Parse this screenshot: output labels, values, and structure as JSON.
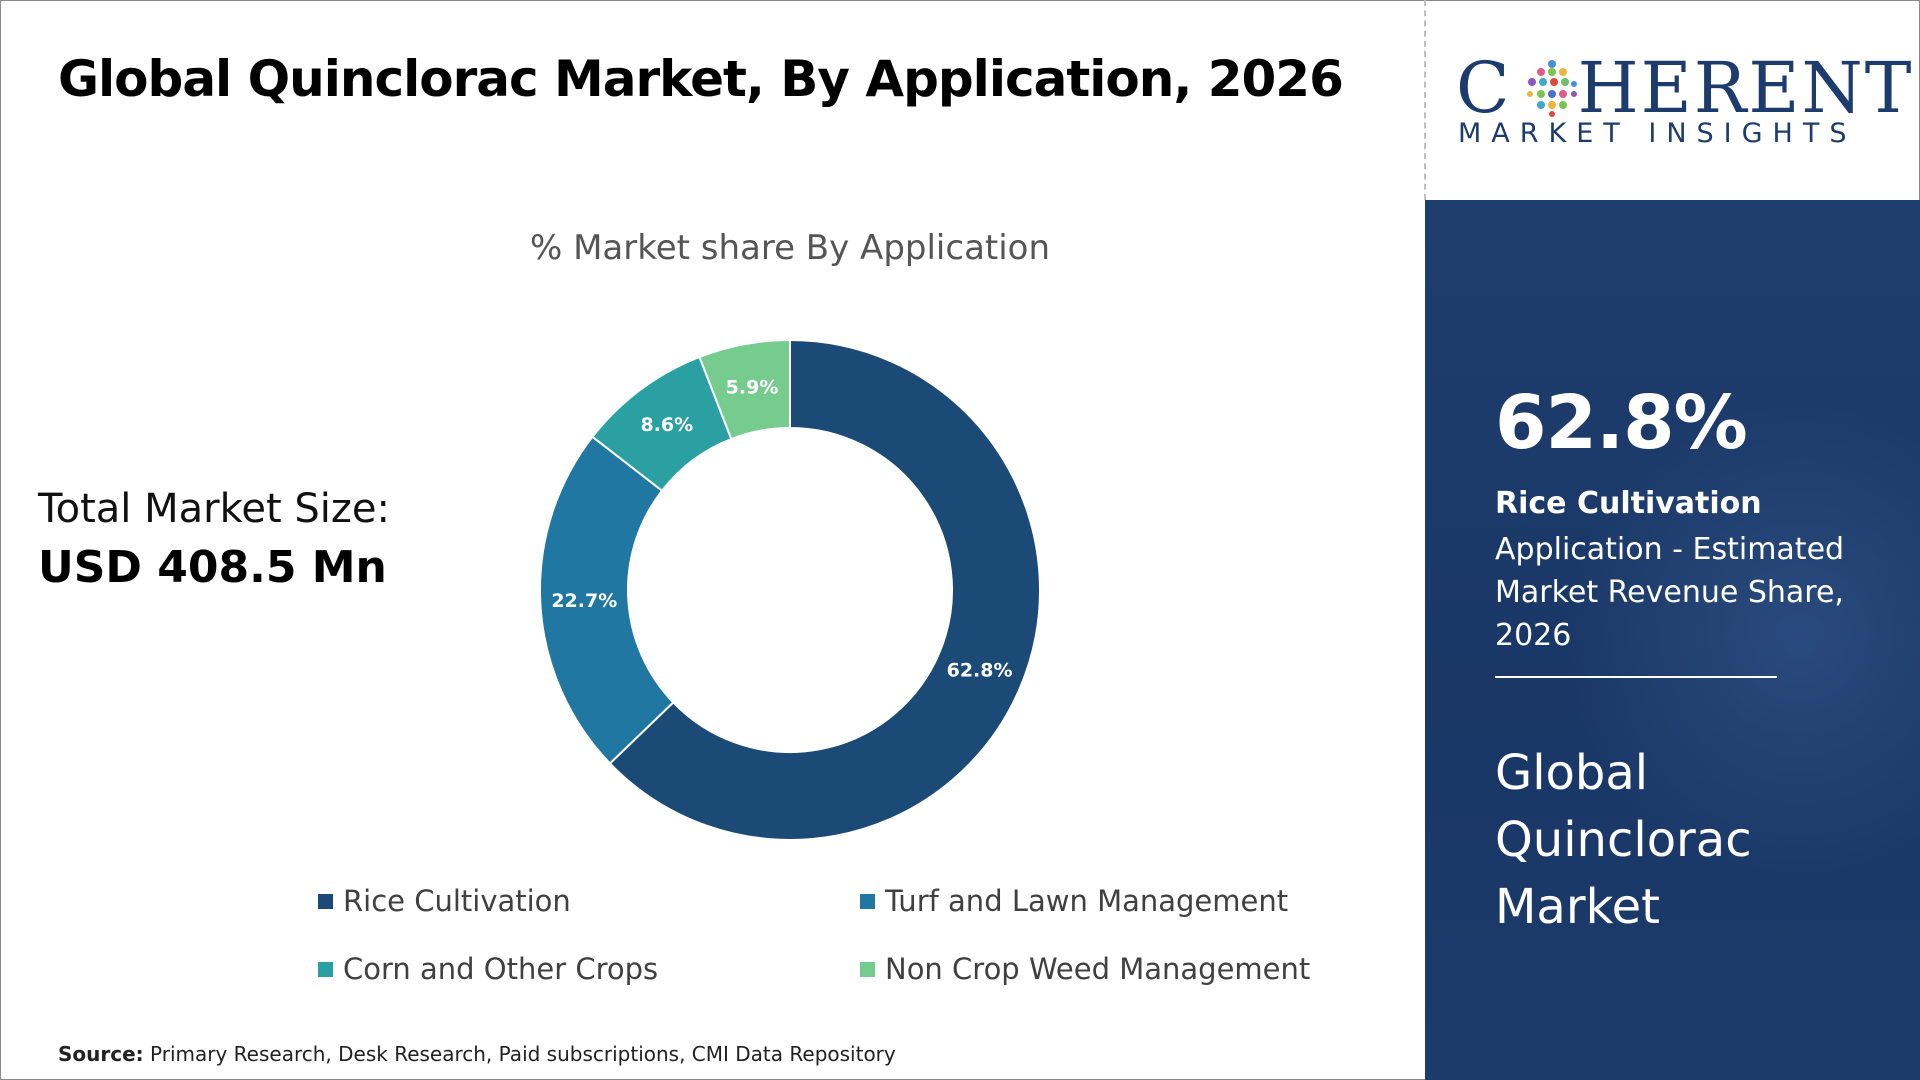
{
  "header": {
    "title": "Global Quinclorac Market, By Application, 2026"
  },
  "logo": {
    "main_prefix": "C",
    "main_suffix": "HERENT",
    "sub": "MARKET INSIGHTS",
    "color": "#1d3c6e"
  },
  "total_market": {
    "label": "Total Market Size:",
    "value": "USD 408.5 Mn"
  },
  "highlight": {
    "value": "62.8%",
    "segment": "Rice Cultivation",
    "description": "Application - Estimated Market Revenue Share, 2026",
    "market_name": "Global Quinclorac Market"
  },
  "source": {
    "label": "Source:",
    "text": "Primary Research, Desk Research, Paid subscriptions, CMI Data Repository"
  },
  "chart_data": {
    "type": "pie",
    "style": "donut",
    "title": "% Market share By Application",
    "unit": "%",
    "legend_placement": "bottom",
    "categories": [
      "Rice Cultivation",
      "Turf and Lawn Management",
      "Corn and Other Crops",
      "Non Crop Weed Management"
    ],
    "values": [
      62.8,
      22.7,
      8.6,
      5.9
    ],
    "data_labels": [
      "62.8%",
      "22.7%",
      "8.6%",
      "5.9%"
    ],
    "colors": [
      "#1c4a76",
      "#1f77a2",
      "#2aa0a3",
      "#76cc8e"
    ]
  }
}
